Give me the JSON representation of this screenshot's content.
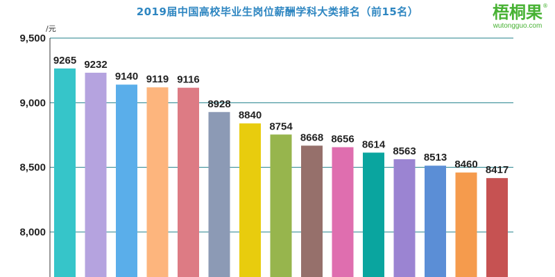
{
  "chart_data": {
    "type": "bar",
    "title": "2019届中国高校毕业生岗位薪酬学科大类排名（前15名）",
    "ylabel": "/元",
    "ylim": [
      7700,
      9500
    ],
    "yticks": [
      "9,500",
      "9,000",
      "8,500",
      "8,000"
    ],
    "ytick_values": [
      9500,
      9000,
      8500,
      8000
    ],
    "values": [
      9265,
      9232,
      9140,
      9119,
      9116,
      8928,
      8840,
      8754,
      8668,
      8656,
      8614,
      8563,
      8513,
      8460,
      8417
    ],
    "colors": [
      "#36c5c9",
      "#b5a3df",
      "#5aaeea",
      "#fdb57d",
      "#dd7b84",
      "#8c9ab5",
      "#e8cc0e",
      "#97b54d",
      "#96706b",
      "#df6eaf",
      "#0aa59f",
      "#9b84d2",
      "#5b8ed6",
      "#f59b4d",
      "#c65252"
    ],
    "grid": true,
    "gridline_color": "#1f7f8a"
  },
  "brand": {
    "name": "梧桐果",
    "url": "wutongguo.com",
    "reg": "®"
  }
}
